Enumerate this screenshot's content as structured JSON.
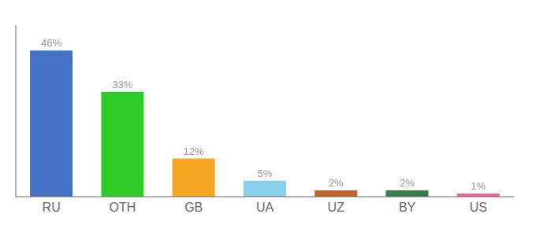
{
  "chart_data": {
    "type": "bar",
    "categories": [
      "RU",
      "OTH",
      "GB",
      "UA",
      "UZ",
      "BY",
      "US"
    ],
    "values": [
      46,
      33,
      12,
      5,
      2,
      2,
      1
    ],
    "value_labels": [
      "46%",
      "33%",
      "12%",
      "5%",
      "2%",
      "2%",
      "1%"
    ],
    "colors": [
      "#4472c4",
      "#2ecc27",
      "#f5a623",
      "#87ceeb",
      "#c0622a",
      "#3a7d44",
      "#e8679a"
    ],
    "ylim": [
      0,
      54
    ],
    "data_labels": true,
    "tick_labels": "x",
    "grid": false
  }
}
